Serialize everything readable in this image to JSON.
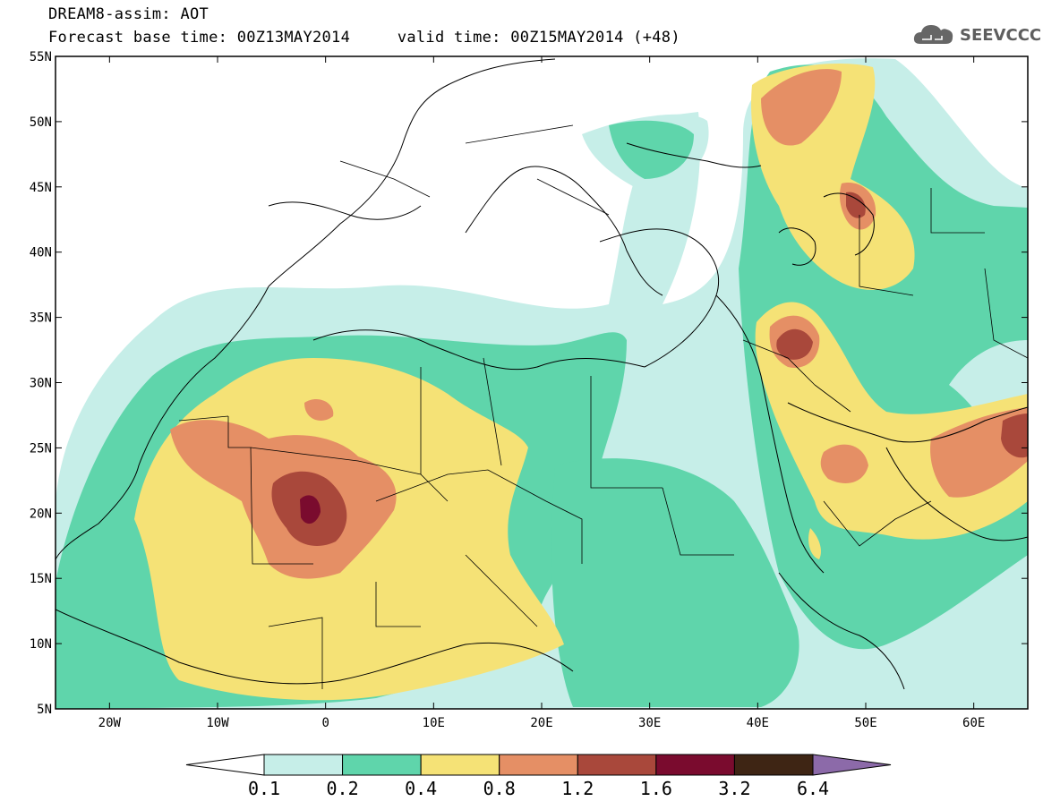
{
  "header": {
    "title_line1": "DREAM8-assim: AOT",
    "base_label": "Forecast base time: 00Z13MAY2014",
    "valid_label": "valid time: 00Z15MAY2014 (+48)"
  },
  "logo": {
    "text": "SEEVCCC",
    "icon": "cloud-icon"
  },
  "map": {
    "variable": "AOT",
    "lon_range": [
      -25,
      65
    ],
    "lat_range": [
      5,
      55
    ],
    "lat_ticks": [
      "5N",
      "10N",
      "15N",
      "20N",
      "25N",
      "30N",
      "35N",
      "40N",
      "45N",
      "50N",
      "55N"
    ],
    "lon_ticks": [
      "20W",
      "10W",
      "0",
      "10E",
      "20E",
      "30E",
      "40E",
      "50E",
      "60E"
    ]
  },
  "colorbar": {
    "levels": [
      "0.1",
      "0.2",
      "0.4",
      "0.8",
      "1.2",
      "1.6",
      "3.2",
      "6.4"
    ],
    "colors": [
      "#ffffff",
      "#c6eee8",
      "#5fd5ab",
      "#f5e276",
      "#e58f65",
      "#a9483b",
      "#7a0b2e",
      "#3e2514",
      "#8c6aa9"
    ]
  }
}
